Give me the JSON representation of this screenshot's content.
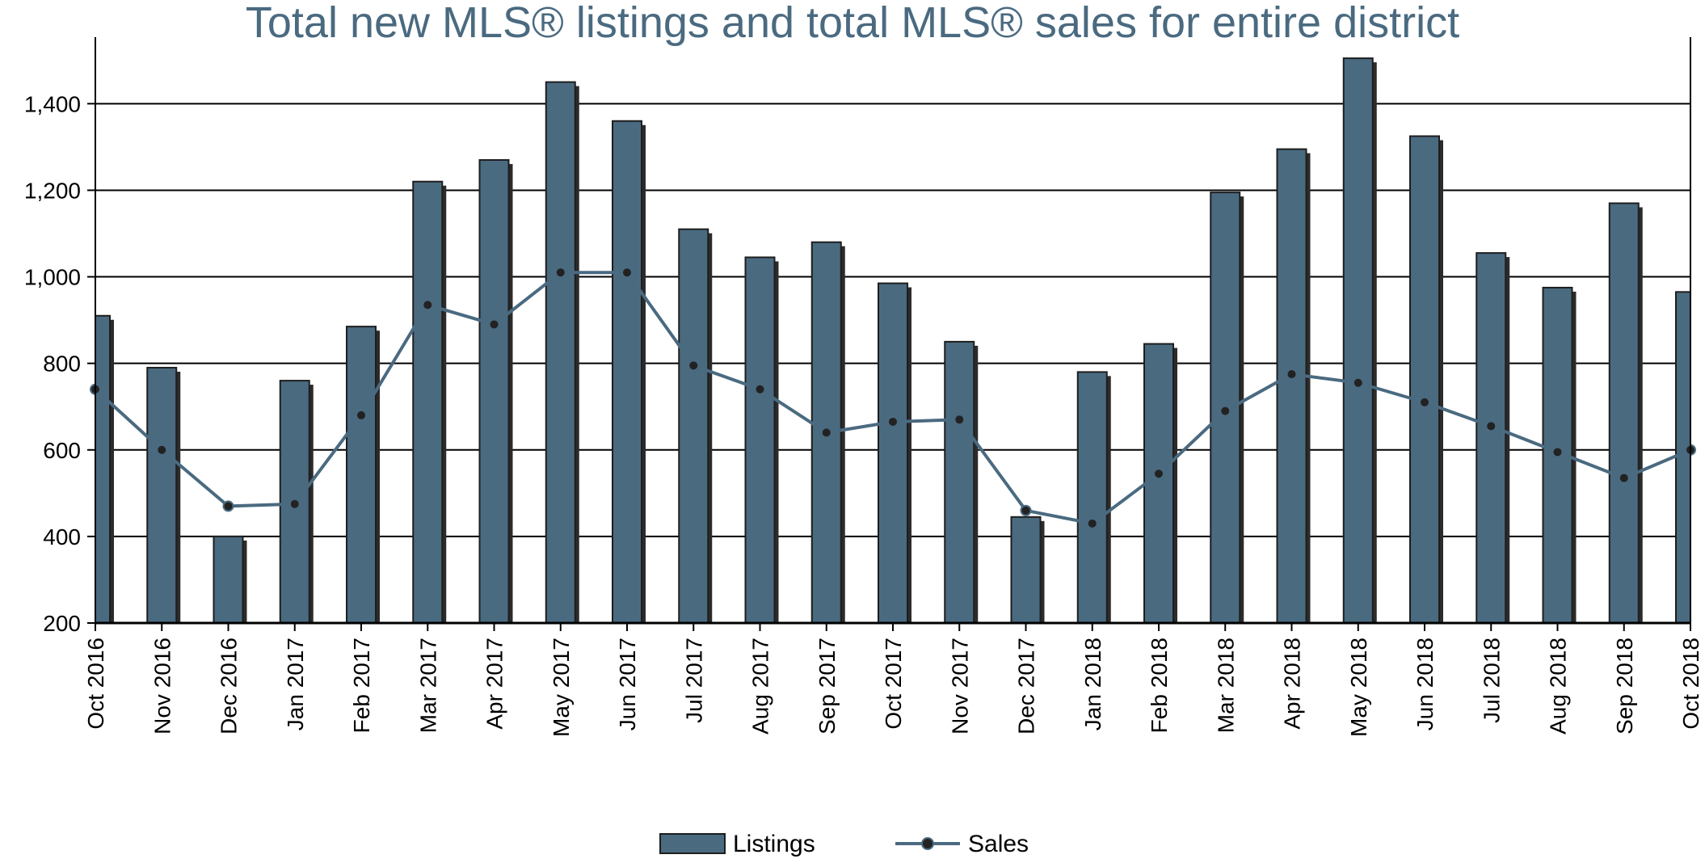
{
  "chart_data": {
    "type": "bar",
    "title": "Total new MLS® listings and total MLS® sales for entire district",
    "xlabel": "",
    "ylabel": "",
    "ylim": [
      200,
      1550
    ],
    "yticks": [
      200,
      400,
      600,
      800,
      1000,
      1200,
      1400
    ],
    "ytick_labels": [
      "200",
      "400",
      "600",
      "800",
      "1,000",
      "1,200",
      "1,400"
    ],
    "grid": true,
    "legend_position": "bottom",
    "categories": [
      "Oct 2016",
      "Nov 2016",
      "Dec 2016",
      "Jan 2017",
      "Feb 2017",
      "Mar 2017",
      "Apr 2017",
      "May 2017",
      "Jun 2017",
      "Jul 2017",
      "Aug 2017",
      "Sep 2017",
      "Oct 2017",
      "Nov 2017",
      "Dec 2017",
      "Jan 2018",
      "Feb 2018",
      "Mar 2018",
      "Apr 2018",
      "May 2018",
      "Jun 2018",
      "Jul 2018",
      "Aug 2018",
      "Sep 2018",
      "Oct 2018"
    ],
    "series": [
      {
        "name": "Listings",
        "type": "bar",
        "color": "#4a6a80",
        "values": [
          910,
          790,
          400,
          760,
          885,
          1220,
          1270,
          1450,
          1360,
          1110,
          1045,
          1080,
          985,
          850,
          445,
          780,
          845,
          1195,
          1295,
          1505,
          1325,
          1055,
          975,
          1170,
          965
        ]
      },
      {
        "name": "Sales",
        "type": "line",
        "color": "#4a6a80",
        "values": [
          740,
          600,
          470,
          475,
          680,
          935,
          890,
          1010,
          1010,
          795,
          740,
          640,
          665,
          670,
          460,
          430,
          545,
          690,
          775,
          755,
          710,
          655,
          595,
          535,
          600
        ]
      }
    ]
  }
}
